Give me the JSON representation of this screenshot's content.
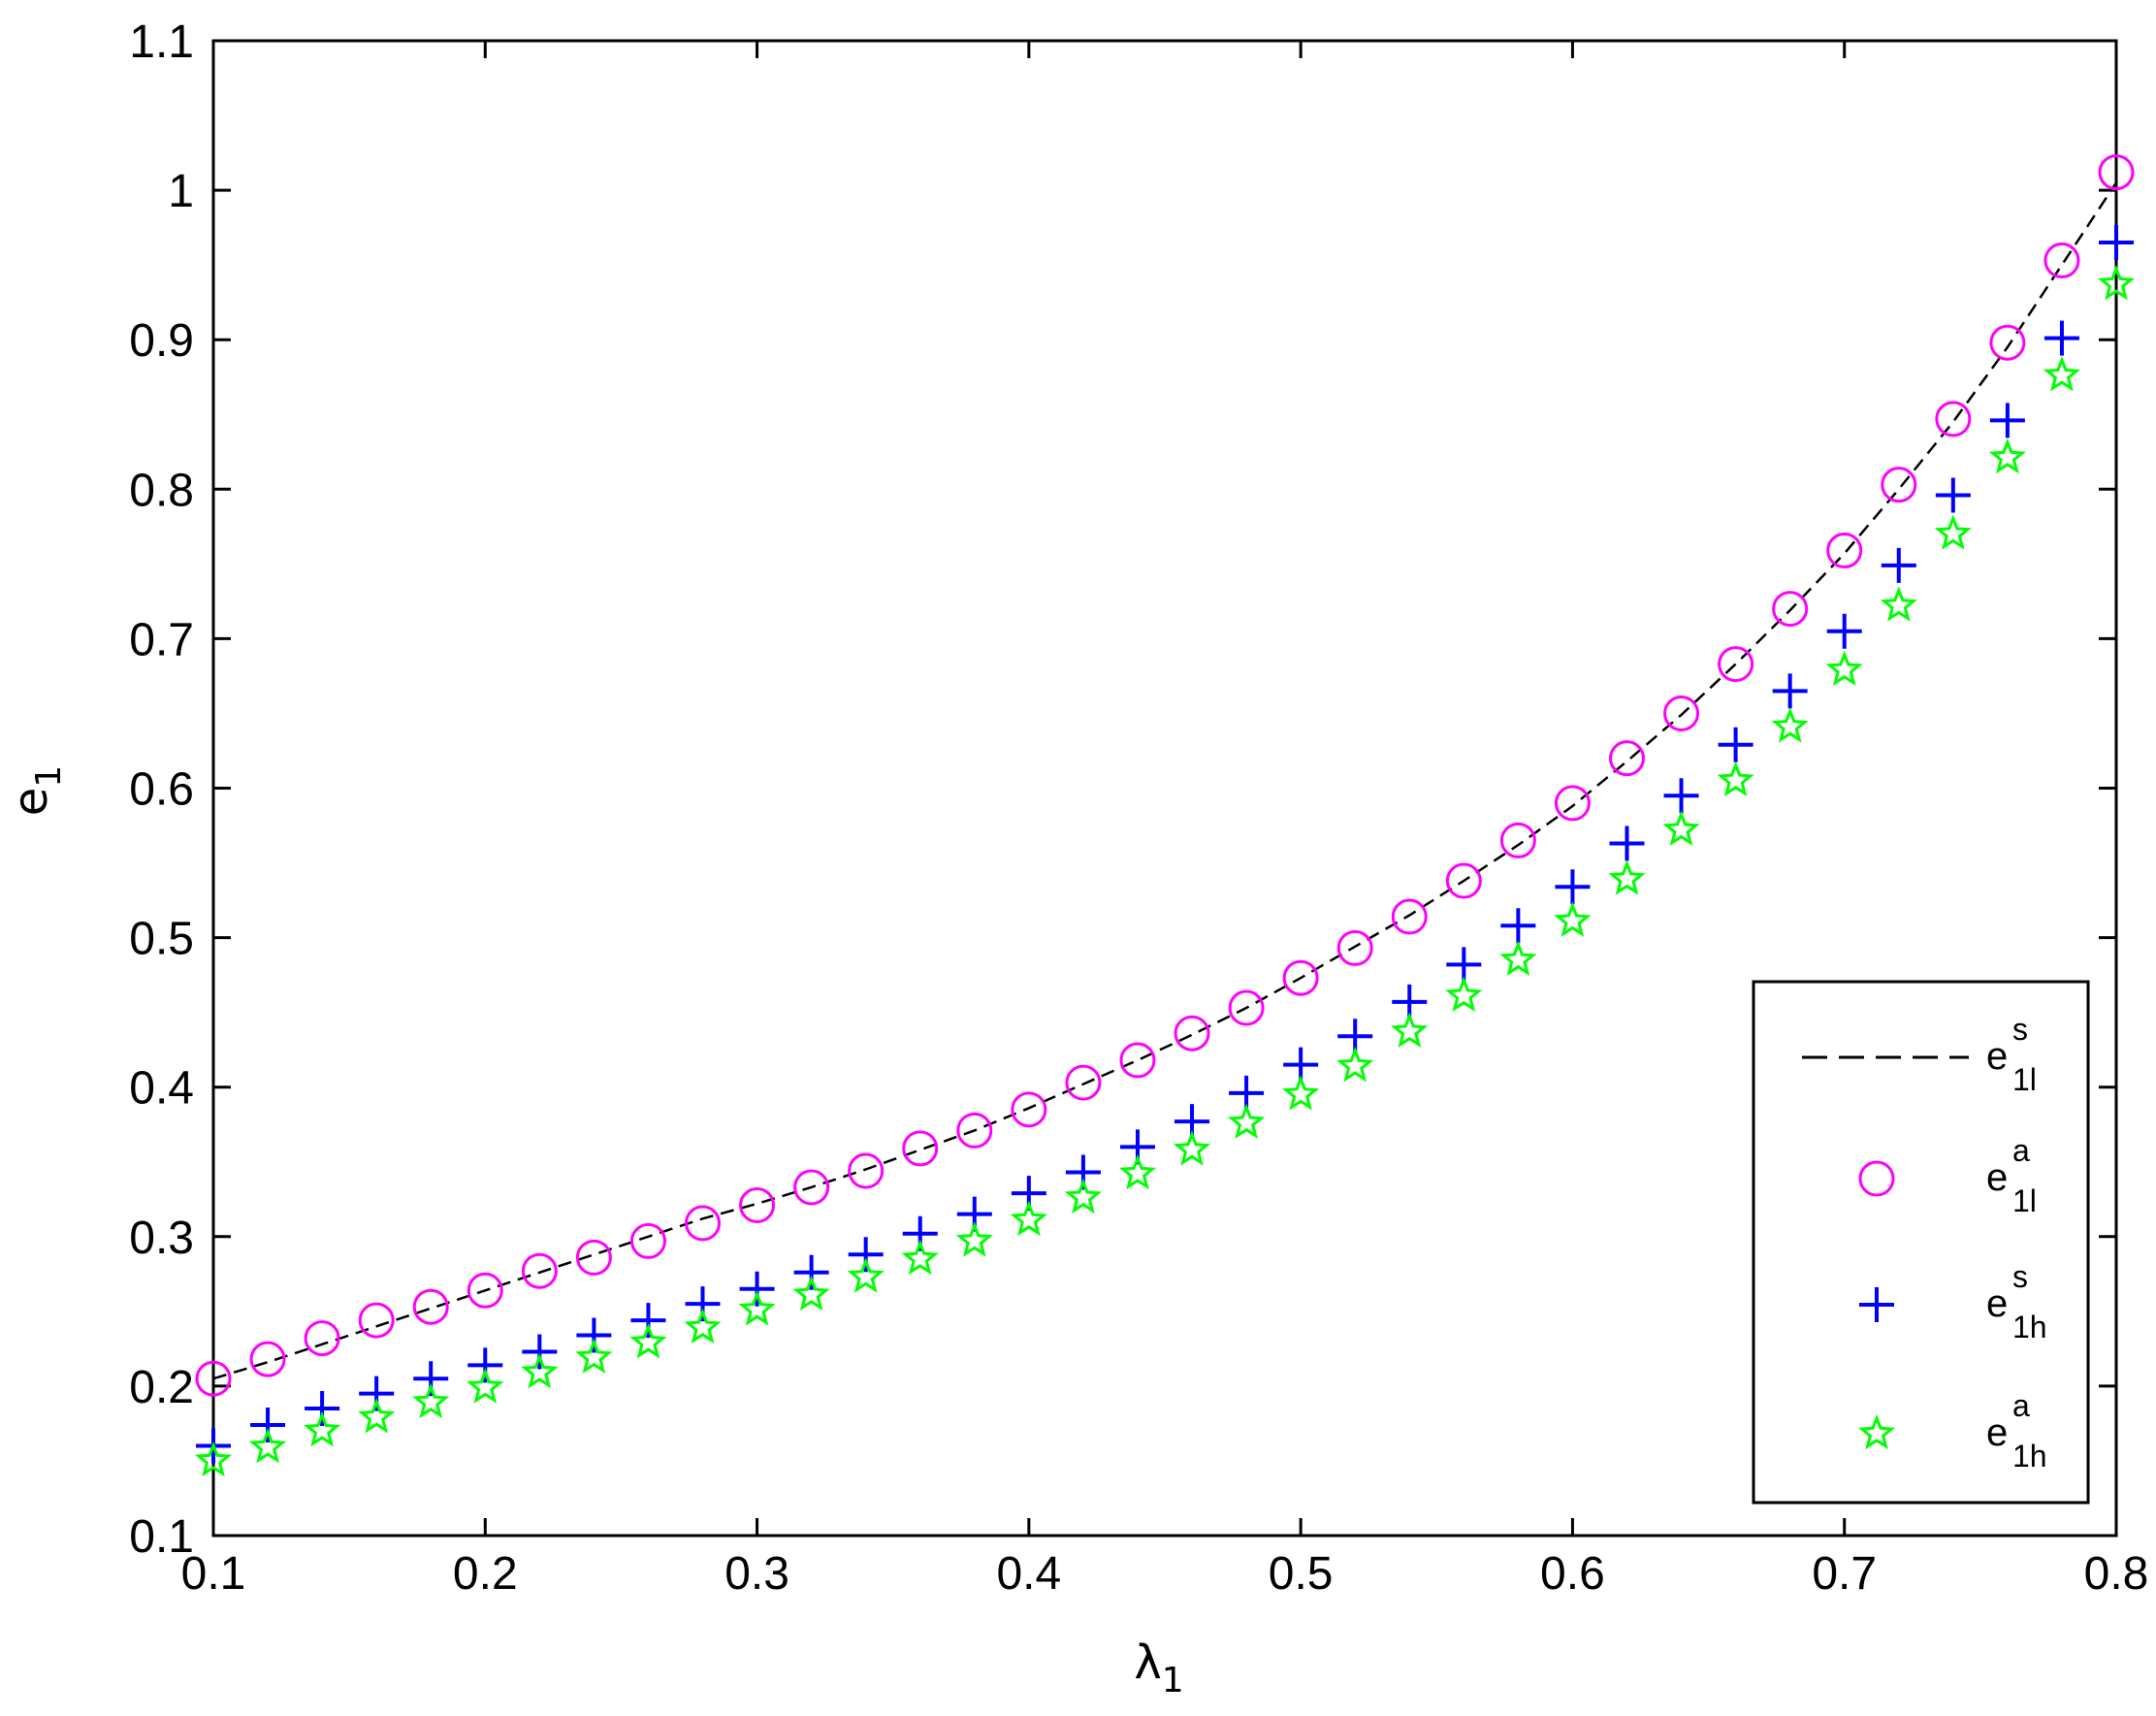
{
  "chart_data": {
    "type": "scatter",
    "xlabel": {
      "base": "λ",
      "sub": "1"
    },
    "ylabel": {
      "base": "e",
      "sub": "1"
    },
    "xlim": [
      0.1,
      0.8
    ],
    "ylim": [
      0.1,
      1.1
    ],
    "xticks": [
      "0.1",
      "0.2",
      "0.3",
      "0.4",
      "0.5",
      "0.6",
      "0.7",
      "0.8"
    ],
    "yticks": [
      "0.1",
      "0.2",
      "0.3",
      "0.4",
      "0.5",
      "0.6",
      "0.7",
      "0.8",
      "0.9",
      "1",
      "1.1"
    ],
    "grid": false,
    "legend_position": "bottom-right",
    "x": [
      0.1,
      0.12,
      0.14,
      0.16,
      0.18,
      0.2,
      0.22,
      0.24,
      0.26,
      0.28,
      0.3,
      0.32,
      0.34,
      0.36,
      0.38,
      0.4,
      0.42,
      0.44,
      0.46,
      0.48,
      0.5,
      0.52,
      0.54,
      0.56,
      0.58,
      0.6,
      0.62,
      0.64,
      0.66,
      0.68,
      0.7,
      0.72,
      0.74,
      0.76,
      0.78,
      0.8
    ],
    "series": [
      {
        "legend": {
          "base": "e",
          "sup": "s",
          "sub": "1l"
        },
        "style": "dashed-line",
        "color": "#000000",
        "values": [
          0.205,
          0.216,
          0.228,
          0.24,
          0.252,
          0.264,
          0.276,
          0.288,
          0.3,
          0.312,
          0.322,
          0.333,
          0.345,
          0.358,
          0.371,
          0.386,
          0.402,
          0.418,
          0.435,
          0.453,
          0.473,
          0.494,
          0.515,
          0.538,
          0.562,
          0.588,
          0.618,
          0.649,
          0.683,
          0.719,
          0.757,
          0.8,
          0.845,
          0.895,
          0.95,
          1.005
        ]
      },
      {
        "legend": {
          "base": "e",
          "sup": "a",
          "sub": "1l"
        },
        "style": "circle",
        "color": "#ff00ff",
        "values": [
          0.205,
          0.218,
          0.232,
          0.244,
          0.253,
          0.264,
          0.277,
          0.286,
          0.297,
          0.309,
          0.321,
          0.333,
          0.344,
          0.359,
          0.371,
          0.385,
          0.403,
          0.418,
          0.436,
          0.453,
          0.473,
          0.493,
          0.514,
          0.538,
          0.565,
          0.59,
          0.62,
          0.65,
          0.683,
          0.72,
          0.759,
          0.803,
          0.847,
          0.898,
          0.953,
          1.012
        ]
      },
      {
        "legend": {
          "base": "e",
          "sup": "s",
          "sub": "1h"
        },
        "style": "plus",
        "color": "#0000ff",
        "values": [
          0.16,
          0.174,
          0.185,
          0.195,
          0.205,
          0.214,
          0.223,
          0.234,
          0.244,
          0.255,
          0.265,
          0.276,
          0.288,
          0.302,
          0.315,
          0.329,
          0.343,
          0.36,
          0.377,
          0.396,
          0.415,
          0.434,
          0.457,
          0.482,
          0.508,
          0.534,
          0.563,
          0.595,
          0.629,
          0.665,
          0.705,
          0.749,
          0.796,
          0.846,
          0.901,
          0.965
        ]
      },
      {
        "legend": {
          "base": "e",
          "sup": "a",
          "sub": "1h"
        },
        "style": "star",
        "color": "#00ff00",
        "values": [
          0.15,
          0.159,
          0.17,
          0.179,
          0.189,
          0.199,
          0.209,
          0.219,
          0.229,
          0.239,
          0.251,
          0.261,
          0.273,
          0.285,
          0.297,
          0.311,
          0.326,
          0.342,
          0.358,
          0.376,
          0.395,
          0.414,
          0.437,
          0.461,
          0.485,
          0.511,
          0.539,
          0.572,
          0.605,
          0.641,
          0.679,
          0.722,
          0.77,
          0.821,
          0.876,
          0.937
        ]
      }
    ]
  }
}
